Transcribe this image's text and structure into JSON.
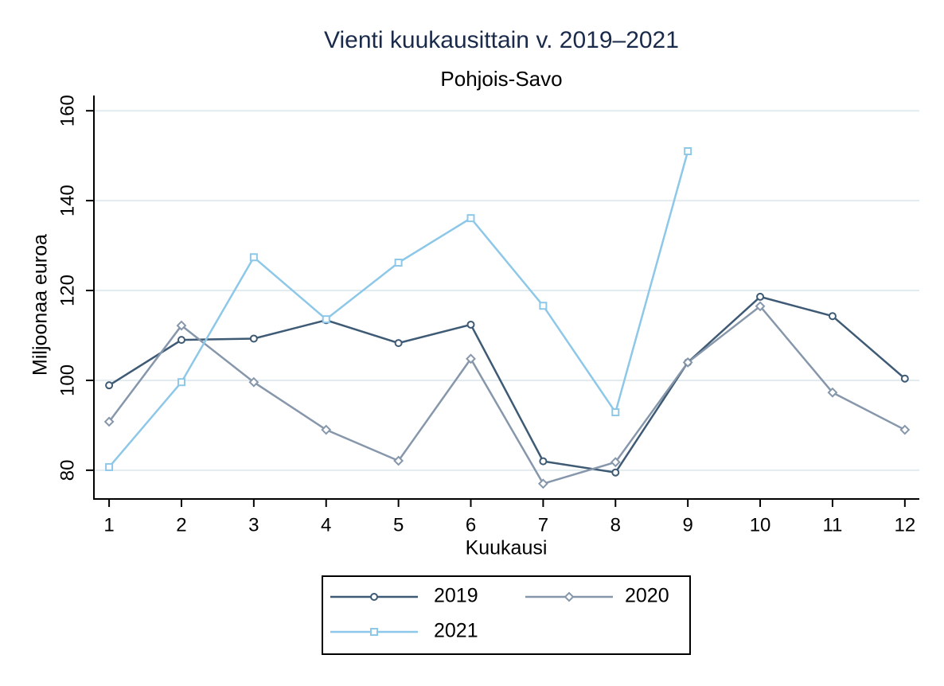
{
  "chart_data": {
    "type": "line",
    "title": "Vienti kuukausittain v. 2019–2021",
    "subtitle": "Pohjois-Savo",
    "x_label": "Kuukausi",
    "y_label": "Miljoonaa euroa",
    "x": [
      1,
      2,
      3,
      4,
      5,
      6,
      7,
      8,
      9,
      10,
      11,
      12
    ],
    "xlim": [
      0.79,
      12.2
    ],
    "xticks": [
      1,
      2,
      3,
      4,
      5,
      6,
      7,
      8,
      9,
      10,
      11,
      12
    ],
    "ylim": [
      73.6,
      163.4
    ],
    "yticks": [
      80,
      100,
      120,
      140,
      160
    ],
    "grid": true,
    "legend": "bottom",
    "series": [
      {
        "name": "2019",
        "color": "#3e5a74",
        "marker": "circle",
        "values": [
          98.9,
          109,
          109.3,
          113.4,
          108.3,
          112.4,
          82,
          79.5,
          104,
          118.6,
          114.3,
          100.4
        ]
      },
      {
        "name": "2020",
        "color": "#8797ab",
        "marker": "diamond",
        "values": [
          90.8,
          112.2,
          99.6,
          89,
          82.1,
          104.8,
          77,
          81.8,
          104,
          116.5,
          97.3,
          89
        ]
      },
      {
        "name": "2021",
        "color": "#8ec8e8",
        "marker": "square",
        "values": [
          80.7,
          99.6,
          127.4,
          113.6,
          126.2,
          136.1,
          116.6,
          92.9,
          151,
          null,
          null,
          null
        ]
      }
    ]
  }
}
